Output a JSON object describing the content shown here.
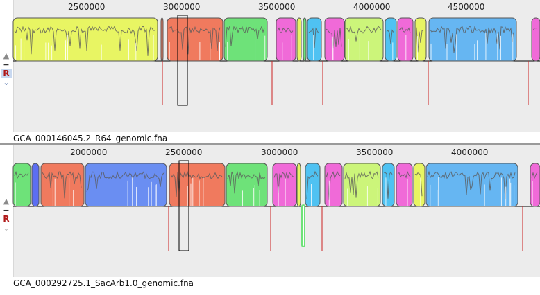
{
  "panels": [
    {
      "genome_label": "GCA_000146045.2_R64_genomic.fna",
      "ticks": [
        {
          "label": "2500000",
          "x": 126
        },
        {
          "label": "3000000",
          "x": 263
        },
        {
          "label": "3500000",
          "x": 400
        },
        {
          "label": "4000000",
          "x": 537
        },
        {
          "label": "4500000",
          "x": 673
        }
      ],
      "controls": {
        "up": "▲",
        "minus": "−",
        "reset": "R",
        "down": "⌄"
      },
      "blocks": [
        {
          "x": 19,
          "w": 208,
          "color": "#e8f563"
        },
        {
          "x": 232,
          "w": 3,
          "color": "#f07a5e"
        },
        {
          "x": 241,
          "w": 80,
          "color": "#f07a5e"
        },
        {
          "x": 323,
          "w": 62,
          "color": "#6ee279"
        },
        {
          "x": 398,
          "w": 28,
          "color": "#f06ad8"
        },
        {
          "x": 428,
          "w": 6,
          "color": "#e8f563"
        },
        {
          "x": 437,
          "w": 4,
          "color": "#6ee279"
        },
        {
          "x": 443,
          "w": 20,
          "color": "#4fc2f2"
        },
        {
          "x": 468,
          "w": 28,
          "color": "#f06ad8"
        },
        {
          "x": 497,
          "w": 55,
          "color": "#ccf57a"
        },
        {
          "x": 555,
          "w": 16,
          "color": "#4fc2f2"
        },
        {
          "x": 573,
          "w": 22,
          "color": "#f06ad8"
        },
        {
          "x": 598,
          "w": 16,
          "color": "#e8f563"
        },
        {
          "x": 618,
          "w": 126,
          "color": "#66b6f2"
        },
        {
          "x": 766,
          "w": 12,
          "color": "#f06ad8"
        }
      ],
      "red_lines": [
        234,
        392,
        465,
        617,
        761
      ],
      "cursor_box": {
        "x": 256,
        "w": 14
      }
    },
    {
      "genome_label": "GCA_000292725.1_SacArb1.0_genomic.fna",
      "ticks": [
        {
          "label": "2000000",
          "x": 129
        },
        {
          "label": "2500000",
          "x": 266
        },
        {
          "label": "3000000",
          "x": 404
        },
        {
          "label": "3500000",
          "x": 541
        },
        {
          "label": "4000000",
          "x": 678
        }
      ],
      "controls": {
        "up": "▲",
        "minus": "−",
        "reset": "R",
        "down": "⌄"
      },
      "blocks": [
        {
          "x": 19,
          "w": 25,
          "color": "#6ee279"
        },
        {
          "x": 46,
          "w": 10,
          "color": "#5c6ef2"
        },
        {
          "x": 59,
          "w": 62,
          "color": "#f07a5e"
        },
        {
          "x": 123,
          "w": 117,
          "color": "#6a8ef2"
        },
        {
          "x": 244,
          "w": 80,
          "color": "#f07a5e"
        },
        {
          "x": 326,
          "w": 59,
          "color": "#6ee279"
        },
        {
          "x": 393,
          "w": 34,
          "color": "#f06ad8"
        },
        {
          "x": 428,
          "w": 5,
          "color": "#e8f563"
        },
        {
          "x": 440,
          "w": 21,
          "color": "#4fc2f2"
        },
        {
          "x": 468,
          "w": 25,
          "color": "#f06ad8"
        },
        {
          "x": 495,
          "w": 53,
          "color": "#ccf57a"
        },
        {
          "x": 551,
          "w": 17,
          "color": "#4fc2f2"
        },
        {
          "x": 571,
          "w": 23,
          "color": "#f06ad8"
        },
        {
          "x": 596,
          "w": 16,
          "color": "#e8f563"
        },
        {
          "x": 614,
          "w": 132,
          "color": "#66b6f2"
        },
        {
          "x": 764,
          "w": 14,
          "color": "#f06ad8"
        }
      ],
      "lower_blocks": [
        {
          "x": 435,
          "w": 4,
          "color": "#6ee279"
        }
      ],
      "red_lines": [
        243,
        390,
        464,
        753
      ],
      "cursor_box": {
        "x": 258,
        "w": 14
      }
    }
  ]
}
